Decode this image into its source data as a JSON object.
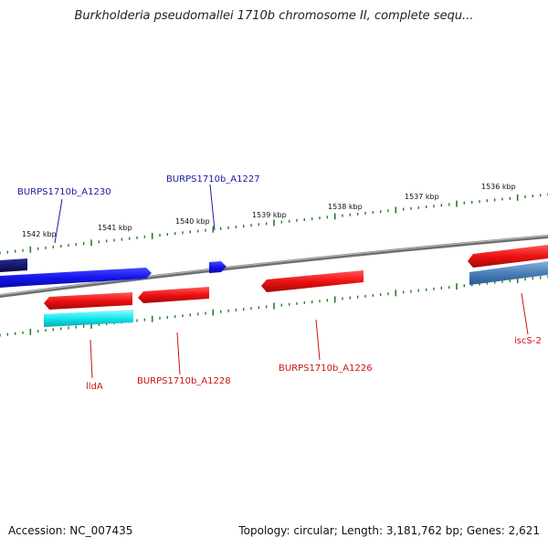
{
  "title": "Burkholderia pseudomallei 1710b chromosome II, complete sequ...",
  "footer": {
    "accession": "Accession: NC_007435",
    "summary": "Topology: circular; Length: 3,181,762 bp; Genes: 2,621"
  },
  "colors": {
    "forward_strand": "#1515ee",
    "forward_dark": "#0a0a70",
    "reverse_strand": "#ee1111",
    "reverse_alt": "#4a7fb8",
    "cyan_gene": "#11e8ee",
    "backbone": "#7a7a7a",
    "ticks": "#2a7a2a",
    "forward_label": "#1a1aa0",
    "reverse_label": "#cc1111"
  },
  "position_ticks": [
    "1542 kbp",
    "1541 kbp",
    "1540 kbp",
    "1539 kbp",
    "1538 kbp",
    "1537 kbp",
    "1536 kbp"
  ],
  "forward_genes": [
    "BURPS1710b_A1230",
    "BURPS1710b_A1227"
  ],
  "reverse_genes": [
    "lldA",
    "BURPS1710b_A1228",
    "BURPS1710b_A1226",
    "iscS-2"
  ]
}
